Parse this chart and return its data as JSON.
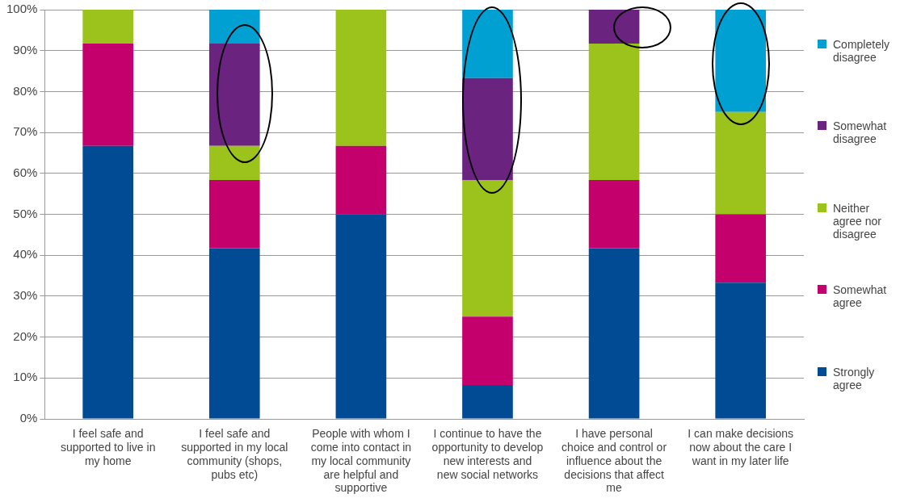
{
  "chart_data": {
    "type": "bar",
    "stacked": true,
    "grid": "y",
    "legend": "right",
    "categories": [
      "I feel safe and supported to live in my home",
      "I feel safe and supported in my local community (shops, pubs etc)",
      "People with whom I come into contact in my local community are helpful and supportive",
      "I continue to have the opportunity to develop new interests and new social networks",
      "I have personal choice and control or influence about the decisions that affect me",
      "I can make decisions now about the care I want in my later life"
    ],
    "series": [
      {
        "name": "Strongly agree",
        "color": "#004b93",
        "values": [
          66.7,
          41.7,
          50,
          8.3,
          41.7,
          33.3
        ]
      },
      {
        "name": "Somewhat agree",
        "color": "#c3006b",
        "values": [
          25,
          16.7,
          16.7,
          16.7,
          16.7,
          16.7
        ]
      },
      {
        "name": "Neither agree nor disagree",
        "color": "#9bc31c",
        "values": [
          8.3,
          8.3,
          33.3,
          33.3,
          33.3,
          25
        ]
      },
      {
        "name": "Somewhat disagree",
        "color": "#6b2380",
        "values": [
          0,
          25,
          0,
          25,
          8.3,
          0
        ]
      },
      {
        "name": "Completely disagree",
        "color": "#00a0d2",
        "values": [
          0,
          8.3,
          0,
          16.7,
          0,
          25
        ]
      }
    ],
    "ylim": [
      0,
      100
    ],
    "yticks": [
      {
        "value": 0,
        "label": "0%"
      },
      {
        "value": 10,
        "label": "10%"
      },
      {
        "value": 20,
        "label": "20%"
      },
      {
        "value": 30,
        "label": "30%"
      },
      {
        "value": 40,
        "label": "40%"
      },
      {
        "value": 50,
        "label": "50%"
      },
      {
        "value": 60,
        "label": "60%"
      },
      {
        "value": 70,
        "label": "70%"
      },
      {
        "value": 80,
        "label": "80%"
      },
      {
        "value": 90,
        "label": "90%"
      },
      {
        "value": 100,
        "label": "100%"
      }
    ]
  }
}
